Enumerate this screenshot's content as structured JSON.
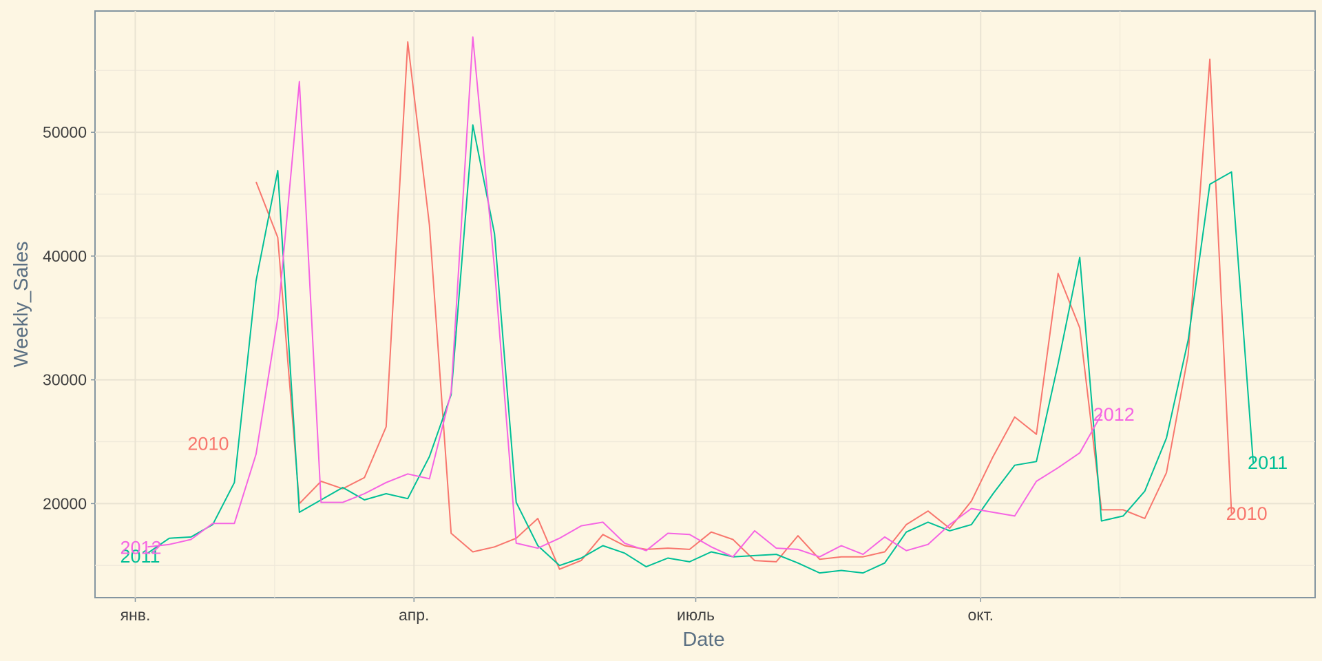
{
  "chart_data": {
    "type": "line",
    "title": "",
    "xlabel": "Date",
    "ylabel": "Weekly_Sales",
    "x_start_day": 5,
    "x_step_days": 7,
    "x_ticks": [
      {
        "label": "янв.",
        "day": 1
      },
      {
        "label": "апр.",
        "day": 91
      },
      {
        "label": "июль",
        "day": 182
      },
      {
        "label": "окт.",
        "day": 274
      }
    ],
    "xlim_days": [
      -12,
      382
    ],
    "y_ticks": [
      20000,
      30000,
      40000,
      50000
    ],
    "ylim": [
      12400,
      59800
    ],
    "grid": true,
    "legend": "none",
    "series": [
      {
        "name": "2010",
        "color": "#f8766d",
        "label_point": [
          31,
          24900
        ],
        "values": [
          null,
          null,
          null,
          null,
          null,
          46000,
          41500,
          20000,
          21800,
          21200,
          22100,
          26200,
          57300,
          42500,
          17600,
          16100,
          16500,
          17200,
          18800,
          14700,
          15400,
          17500,
          16600,
          16300,
          16400,
          16300,
          17700,
          17100,
          15400,
          15300,
          17400,
          15500,
          15700,
          15700,
          16100,
          18300,
          19400,
          18000,
          20200,
          23800,
          27000,
          25600,
          38600,
          34200,
          19500,
          19500,
          18800,
          22500,
          32000,
          55900,
          19200
        ]
      },
      {
        "name": "2011",
        "color": "#00bf96",
        "label_point": [
          0,
          15800
        ],
        "values": [
          16000,
          17200,
          17300,
          18300,
          21700,
          38000,
          46900,
          19300,
          20300,
          21300,
          20300,
          20800,
          20400,
          23800,
          28800,
          50600,
          41800,
          20100,
          16600,
          15000,
          15600,
          16600,
          16000,
          14900,
          15600,
          15300,
          16100,
          15700,
          15800,
          15900,
          15200,
          14400,
          14600,
          14400,
          15200,
          17700,
          18500,
          17800,
          18300,
          20800,
          23100,
          23400,
          31300,
          39900,
          18600,
          19000,
          21000,
          25300,
          33200,
          45800,
          46800,
          23300
        ]
      },
      {
        "name": "2012",
        "color": "#f564e3",
        "label_point": [
          0,
          16500
        ],
        "values": [
          16500,
          16700,
          17100,
          18400,
          18400,
          24000,
          35000,
          54100,
          20100,
          20100,
          20800,
          21700,
          22400,
          22000,
          29000,
          57700,
          39000,
          16800,
          16400,
          17200,
          18200,
          18500,
          16800,
          16200,
          17600,
          17500,
          16500,
          15700,
          17800,
          16400,
          16300,
          15700,
          16600,
          15900,
          17300,
          16200,
          16700,
          18300,
          19600,
          19300,
          19000,
          21800,
          22900,
          24100,
          27200
        ]
      }
    ],
    "point_labels": [
      {
        "text": "2010",
        "series": "2010",
        "position": "left-start"
      },
      {
        "text": "2011",
        "series": "2011",
        "position": "left-start"
      },
      {
        "text": "2012",
        "series": "2012",
        "position": "left-start"
      },
      {
        "text": "2012",
        "series": "2012",
        "position": "right-end"
      },
      {
        "text": "2011",
        "series": "2011",
        "position": "right-end"
      },
      {
        "text": "2010",
        "series": "2010",
        "position": "right-end"
      }
    ]
  }
}
